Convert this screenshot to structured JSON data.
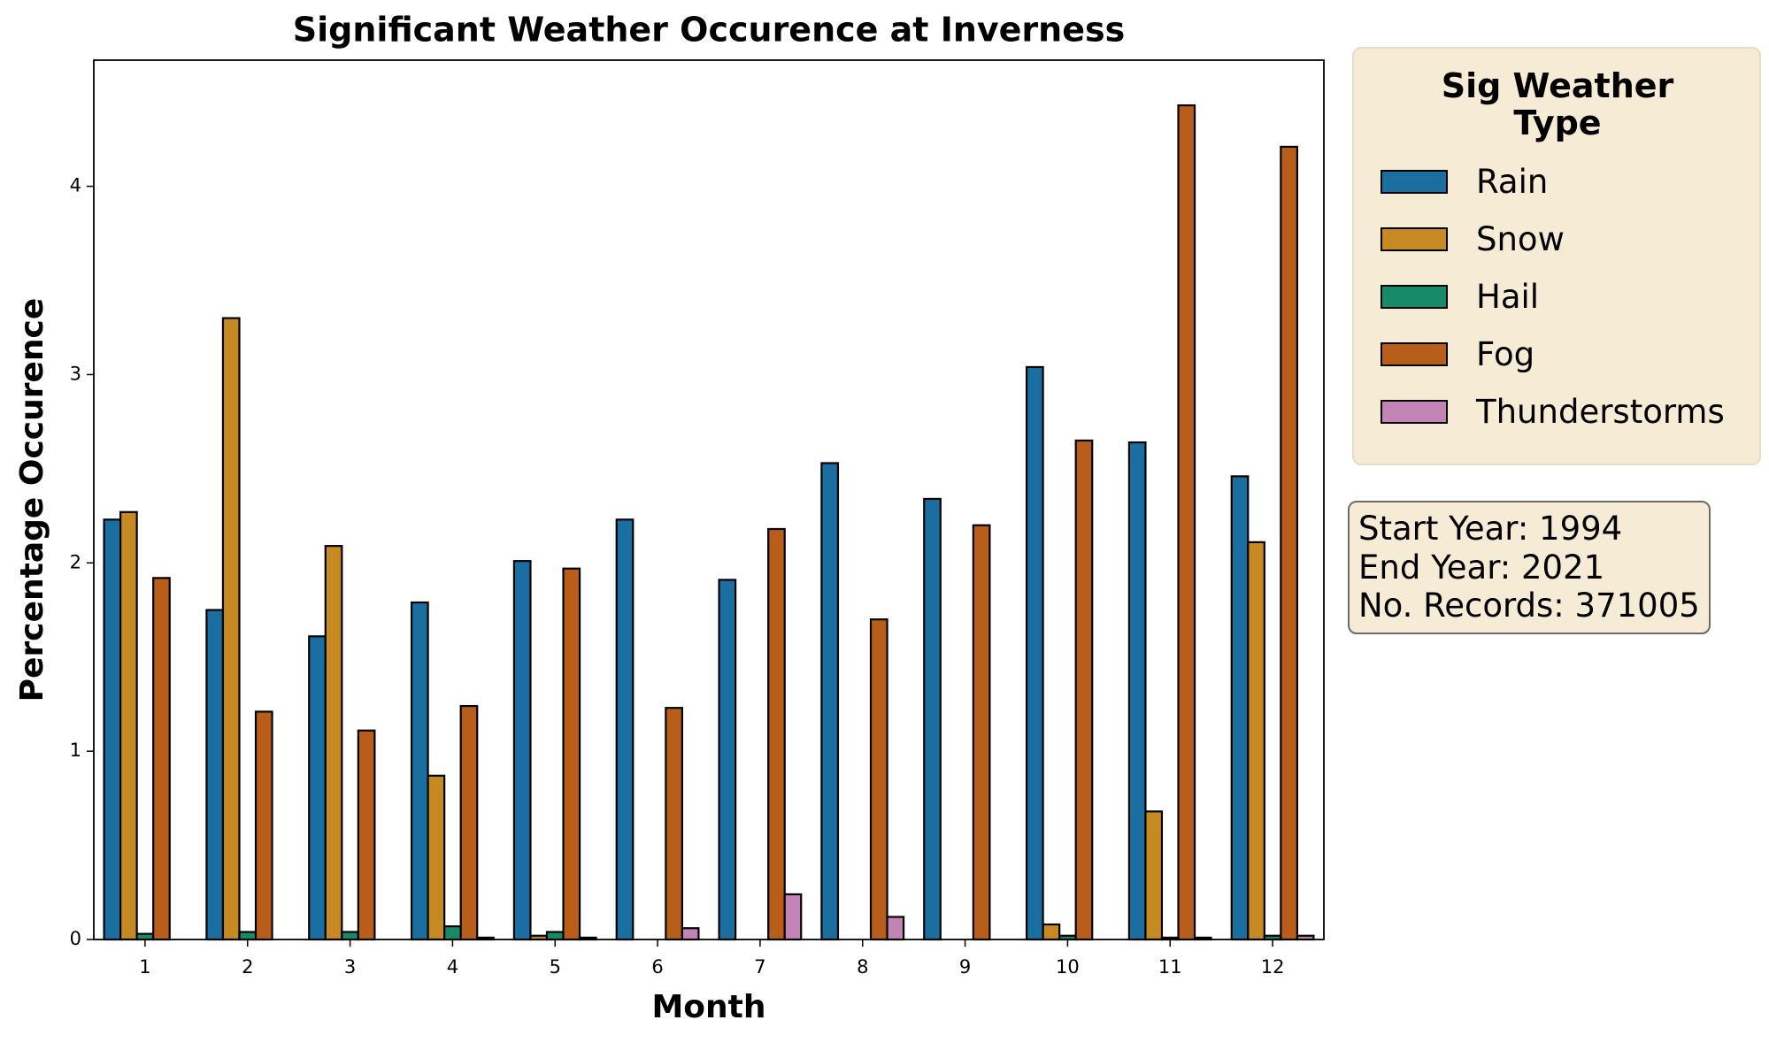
{
  "chart_data": {
    "type": "bar",
    "title": "Significant Weather Occurence at Inverness",
    "xlabel": "Month",
    "ylabel": "Percentage Occurence",
    "categories": [
      "1",
      "2",
      "3",
      "4",
      "5",
      "6",
      "7",
      "8",
      "9",
      "10",
      "11",
      "12"
    ],
    "series": [
      {
        "name": "Rain",
        "color": "#1a6fa0",
        "values": [
          2.23,
          1.75,
          1.61,
          1.79,
          2.01,
          2.23,
          1.91,
          2.53,
          2.34,
          3.04,
          2.64,
          2.46
        ]
      },
      {
        "name": "Snow",
        "color": "#c78a22",
        "values": [
          2.27,
          3.3,
          2.09,
          0.87,
          0.02,
          0,
          0,
          0,
          0,
          0.08,
          0.68,
          2.11
        ]
      },
      {
        "name": "Hail",
        "color": "#178a68",
        "values": [
          0.03,
          0.04,
          0.04,
          0.07,
          0.04,
          0,
          0,
          0,
          0,
          0.02,
          0.01,
          0.02
        ]
      },
      {
        "name": "Fog",
        "color": "#b85d1a",
        "values": [
          1.92,
          1.21,
          1.11,
          1.24,
          1.97,
          1.23,
          2.18,
          1.7,
          2.2,
          2.65,
          4.43,
          4.21
        ]
      },
      {
        "name": "Thunderstorms",
        "color": "#c283b6",
        "values": [
          0,
          0,
          0,
          0.01,
          0.01,
          0.06,
          0.24,
          0.12,
          0,
          0,
          0.01,
          0.02
        ]
      }
    ],
    "ylim": [
      0,
      4.67
    ],
    "yticks": [
      0,
      1,
      2,
      3,
      4
    ],
    "legend_title": "Sig Weather Type",
    "annotation": [
      "Start Year: 1994",
      "End Year: 2021",
      "No. Records: 371005"
    ]
  }
}
